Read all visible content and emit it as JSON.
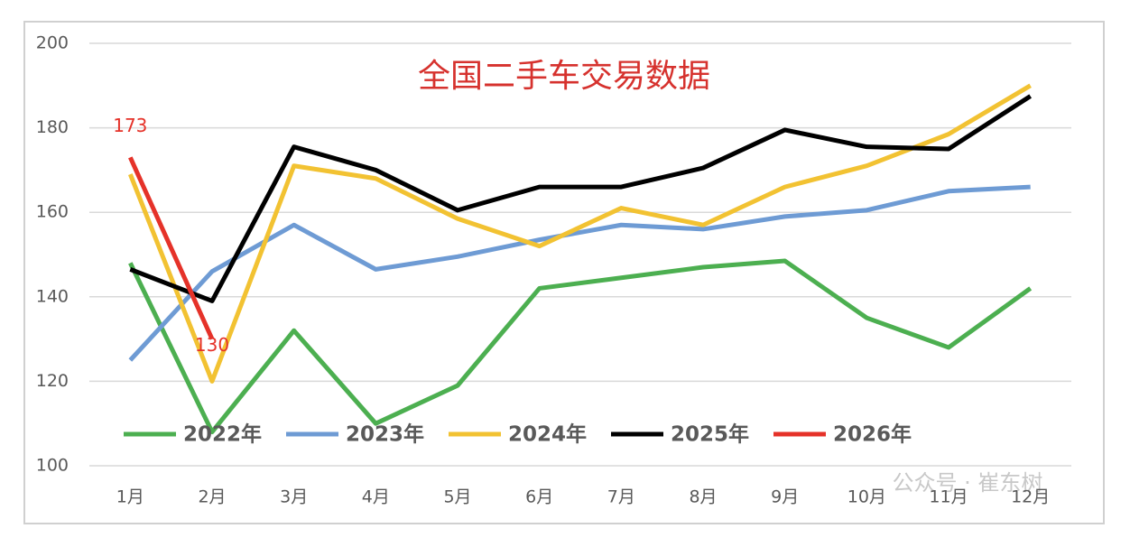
{
  "chart_data": {
    "type": "line",
    "title": "全国二手车交易数据",
    "categories": [
      "1月",
      "2月",
      "3月",
      "4月",
      "5月",
      "6月",
      "7月",
      "8月",
      "9月",
      "10月",
      "11月",
      "12月"
    ],
    "series": [
      {
        "name": "2022年",
        "color": "#4caf50",
        "values": [
          148,
          108,
          132,
          110,
          119,
          142,
          144.5,
          147,
          148.5,
          135,
          128,
          142
        ]
      },
      {
        "name": "2023年",
        "color": "#6e9bd4",
        "values": [
          125,
          146,
          157,
          146.5,
          149.5,
          153.5,
          157,
          156,
          159,
          160.5,
          165,
          166
        ]
      },
      {
        "name": "2024年",
        "color": "#f2c232",
        "values": [
          169,
          120,
          171,
          168,
          158.5,
          152,
          161,
          157,
          166,
          171,
          178.5,
          190
        ]
      },
      {
        "name": "2025年",
        "color": "#000000",
        "values": [
          146.5,
          139,
          175.5,
          170,
          160.5,
          166,
          166,
          170.5,
          179.5,
          175.5,
          175,
          187.5
        ]
      },
      {
        "name": "2026年",
        "color": "#e53229",
        "values": [
          173,
          130,
          null,
          null,
          null,
          null,
          null,
          null,
          null,
          null,
          null,
          null
        ],
        "data_labels": true
      }
    ],
    "ylim": [
      100,
      200
    ],
    "yticks": [
      100,
      120,
      140,
      160,
      180,
      200
    ],
    "grid": true,
    "watermark": "公众号 · 崔东树"
  }
}
